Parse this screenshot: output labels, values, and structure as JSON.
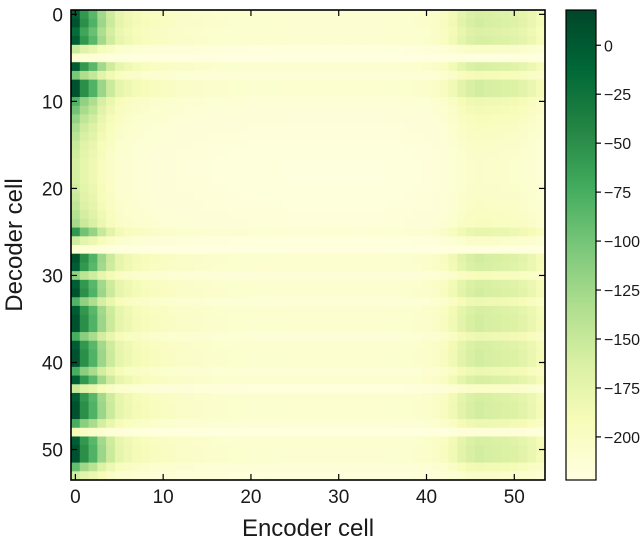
{
  "chart_data": {
    "type": "heatmap",
    "title": "",
    "xlabel": "Encoder cell",
    "ylabel": "Decoder cell",
    "x_range": [
      0,
      53
    ],
    "y_range": [
      0,
      53
    ],
    "y_inverted": true,
    "x_ticks": [
      0,
      10,
      20,
      30,
      40,
      50
    ],
    "y_ticks": [
      0,
      10,
      20,
      30,
      40,
      50
    ],
    "colormap": "YlGn (reversed: dark green = high, pale yellow = low)",
    "colorbar": {
      "placement": "right",
      "range": [
        -222,
        18
      ],
      "ticks": [
        0,
        -25,
        -50,
        -75,
        -100,
        -125,
        -150,
        -175,
        -200
      ],
      "tick_labels": [
        "0",
        "−25",
        "−50",
        "−75",
        "−100",
        "−125",
        "−150",
        "−175",
        "−200"
      ],
      "colors": [
        "#ffffe0",
        "#f7fcb9",
        "#d9f0a3",
        "#addd8e",
        "#78c679",
        "#41ab5d",
        "#238443",
        "#006837",
        "#004529"
      ]
    },
    "column_profile": [
      15,
      -45,
      -75,
      -120,
      -150,
      -172,
      -182,
      -188,
      -192,
      -196,
      -198,
      -200,
      -202,
      -203,
      -204,
      -205,
      -206,
      -206,
      -207,
      -207,
      -208,
      -208,
      -208,
      -208,
      -209,
      -209,
      -209,
      -209,
      -209,
      -209,
      -209,
      -209,
      -209,
      -209,
      -209,
      -209,
      -208,
      -208,
      -207,
      -206,
      -205,
      -202,
      -196,
      -185,
      -170,
      -160,
      -156,
      -158,
      -160,
      -162,
      -165,
      -170,
      -178,
      -188
    ],
    "row_profile": [
      0.93,
      0.97,
      0.87,
      0.93,
      0.3,
      0.05,
      0.93,
      0.5,
      0.97,
      0.97,
      0.6,
      0.52,
      0.44,
      0.38,
      0.34,
      0.3,
      0.28,
      0.26,
      0.26,
      0.26,
      0.28,
      0.3,
      0.32,
      0.36,
      0.4,
      0.7,
      0.28,
      0.05,
      0.97,
      0.93,
      0.45,
      0.93,
      0.97,
      0.6,
      0.93,
      0.97,
      0.97,
      0.62,
      0.93,
      0.97,
      0.97,
      0.62,
      0.93,
      0.3,
      0.93,
      0.97,
      0.97,
      0.62,
      0.12,
      0.93,
      0.97,
      0.97,
      0.55,
      0.28
    ],
    "grid": false
  }
}
